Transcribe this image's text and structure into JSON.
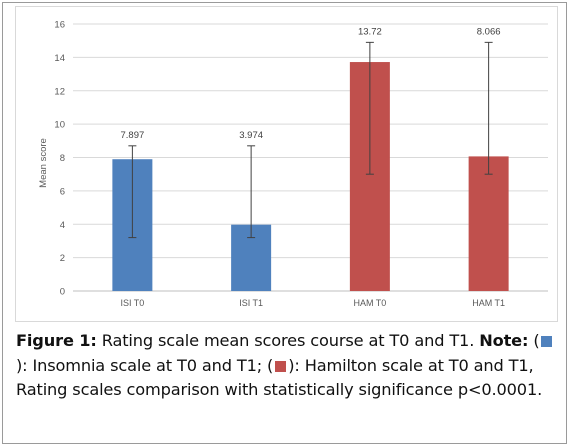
{
  "chart_data": {
    "type": "bar",
    "ylabel": "Mean score",
    "ylim": [
      0,
      16
    ],
    "yticks": [
      0,
      2,
      4,
      6,
      8,
      10,
      12,
      14,
      16
    ],
    "categories": [
      "ISI T0",
      "ISI T1",
      "HAM T0",
      "HAM T1"
    ],
    "values": [
      7.897,
      3.974,
      13.72,
      8.066
    ],
    "data_labels": [
      "7.897",
      "3.974",
      "13.72",
      "8.066"
    ],
    "error_low": [
      3.2,
      3.2,
      7.0,
      7.0
    ],
    "error_high": [
      8.7,
      8.7,
      14.9,
      14.9
    ],
    "bar_colors": [
      "#4f81bd",
      "#4f81bd",
      "#c0504d",
      "#c0504d"
    ],
    "grid": true,
    "legend": "none"
  },
  "caption": {
    "figure_label": "Figure 1:",
    "text_1": " Rating scale mean scores course at T0 and T1. ",
    "note_label": "Note:",
    "open_paren_1": "(",
    "close_1": "): Insomnia scale at T0 and T1; (",
    "close_2": "): Hamilton scale at T0 and T1, Rating scales comparison with statistically significance p<0.0001.",
    "swatch_1_color": "#4f81bd",
    "swatch_2_color": "#c0504d"
  }
}
